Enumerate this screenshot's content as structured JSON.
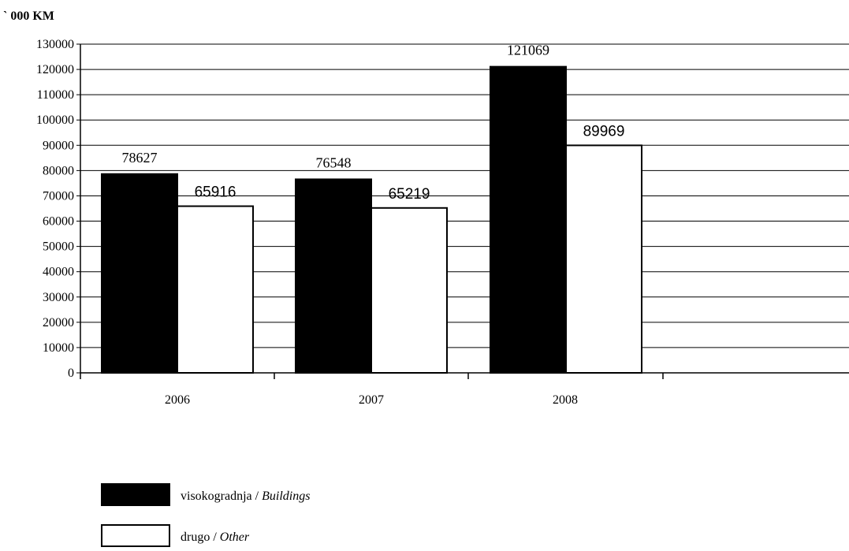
{
  "unit_label": "` 000 KM",
  "chart_data": {
    "type": "bar",
    "categories": [
      "2006",
      "2007",
      "2008"
    ],
    "series": [
      {
        "name": "visokogradnja",
        "name_en": "Buildings",
        "values": [
          78627,
          76548,
          121069
        ],
        "color": "#000000"
      },
      {
        "name": "drugo",
        "name_en": "Other",
        "values": [
          65916,
          65219,
          89969
        ],
        "color": "#ffffff"
      }
    ],
    "ylim": [
      0,
      130000
    ],
    "ytick_step": 10000,
    "yticks": [
      "0",
      "10000",
      "20000",
      "30000",
      "40000",
      "50000",
      "60000",
      "70000",
      "80000",
      "90000",
      "100000",
      "110000",
      "120000",
      "130000"
    ],
    "grid": true,
    "legend_position": "bottom-left",
    "title": "",
    "xlabel": "",
    "ylabel": "` 000 KM"
  },
  "legend": {
    "separator": " / "
  }
}
